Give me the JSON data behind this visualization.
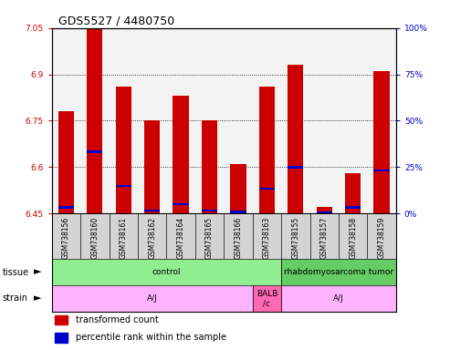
{
  "title": "GDS5527 / 4480750",
  "samples": [
    "GSM738156",
    "GSM738160",
    "GSM738161",
    "GSM738162",
    "GSM738164",
    "GSM738165",
    "GSM738166",
    "GSM738163",
    "GSM738155",
    "GSM738157",
    "GSM738158",
    "GSM738159"
  ],
  "red_values": [
    6.78,
    7.05,
    6.86,
    6.75,
    6.83,
    6.75,
    6.61,
    6.86,
    6.93,
    6.47,
    6.58,
    6.91
  ],
  "blue_values": [
    6.47,
    6.65,
    6.54,
    6.46,
    6.48,
    6.46,
    6.455,
    6.53,
    6.6,
    6.452,
    6.47,
    6.59
  ],
  "ymin": 6.45,
  "ymax": 7.05,
  "yticks": [
    6.45,
    6.6,
    6.75,
    6.9,
    7.05
  ],
  "y2labels": [
    "0%",
    "25%",
    "50%",
    "75%",
    "100%"
  ],
  "bar_bottom": 6.45,
  "bar_width": 0.55,
  "bar_color_red": "#CC0000",
  "bar_color_blue": "#0000CC",
  "left_tick_color": "#CC0000",
  "right_tick_color": "#0000CC",
  "tissue_configs": [
    {
      "start": 0,
      "end": 8,
      "text": "control",
      "color": "#90EE90"
    },
    {
      "start": 8,
      "end": 12,
      "text": "rhabdomyosarcoma tumor",
      "color": "#66CC66"
    }
  ],
  "strain_configs": [
    {
      "start": 0,
      "end": 7,
      "text": "A/J",
      "color": "#FFB3FF"
    },
    {
      "start": 7,
      "end": 8,
      "text": "BALB\n/c",
      "color": "#FF69B4"
    },
    {
      "start": 8,
      "end": 12,
      "text": "A/J",
      "color": "#FFB3FF"
    }
  ],
  "grid_yticks": [
    6.6,
    6.75,
    6.9
  ],
  "label_fontsize": 7,
  "tick_fontsize": 6.5,
  "sample_fontsize": 5.5,
  "title_fontsize": 9,
  "row_fontsize": 6.5
}
